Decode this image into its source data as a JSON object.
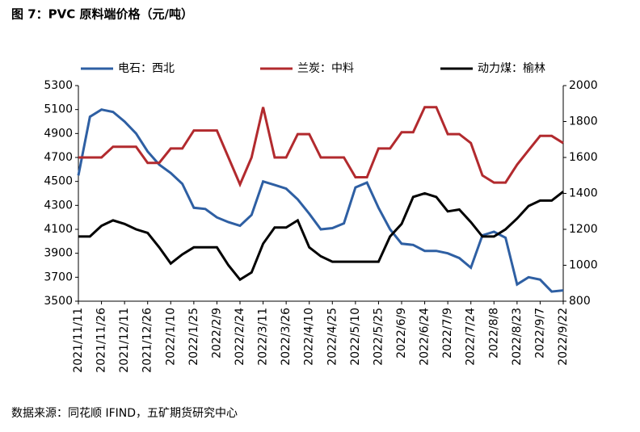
{
  "chart_data": {
    "type": "line",
    "title": "图 7：PVC 原料端价格（元/吨）",
    "source": "数据来源：同花顺 IFIND，五矿期货研究中心",
    "categories": [
      "2021/11/11",
      null,
      "2021/11/26",
      null,
      "2021/12/11",
      null,
      "2021/12/26",
      null,
      "2022/1/10",
      null,
      "2022/1/25",
      null,
      "2022/2/9",
      null,
      "2022/2/24",
      null,
      "2022/3/11",
      null,
      "2022/3/26",
      null,
      "2022/4/10",
      null,
      "2022/4/25",
      null,
      "2022/5/10",
      null,
      "2022/5/25",
      null,
      "2022/6/9",
      null,
      "2022/6/24",
      null,
      "2022/7/9",
      null,
      "2022/7/24",
      null,
      "2022/8/8",
      null,
      "2022/8/23",
      null,
      "2022/9/7",
      null,
      "2022/9/22"
    ],
    "series": [
      {
        "name": "电石：西北",
        "color": "#2e5fa3",
        "values": [
          4550,
          5040,
          5100,
          5080,
          5000,
          4900,
          4750,
          4640,
          4570,
          4480,
          4280,
          4270,
          4200,
          4160,
          4130,
          4220,
          4500,
          4470,
          4440,
          4350,
          4230,
          4100,
          4110,
          4150,
          4450,
          4490,
          4280,
          4100,
          3980,
          3970,
          3920,
          3920,
          3900,
          3860,
          3780,
          4050,
          4080,
          4030,
          3640,
          3700,
          3680,
          3580,
          3590
        ]
      },
      {
        "name": "兰炭：中料",
        "color": "#b22a2e",
        "axis": "y2",
        "values": [
          1600,
          1600,
          1600,
          1660,
          1660,
          1660,
          1570,
          1570,
          1650,
          1650,
          1750,
          1750,
          1750,
          1600,
          1450,
          1600,
          1880,
          1600,
          1600,
          1730,
          1730,
          1600,
          1600,
          1600,
          1490,
          1490,
          1650,
          1650,
          1740,
          1740,
          1880,
          1880,
          1730,
          1730,
          1680,
          1500,
          1460,
          1460,
          1560,
          1640,
          1720,
          1720,
          1680
        ]
      },
      {
        "name": "动力煤：榆林",
        "color": "#000000",
        "axis": "y2",
        "values": [
          1160,
          1160,
          1220,
          1250,
          1230,
          1200,
          1180,
          1100,
          1010,
          1060,
          1100,
          1100,
          1100,
          1000,
          920,
          960,
          1120,
          1210,
          1210,
          1250,
          1100,
          1050,
          1020,
          1020,
          1020,
          1020,
          1020,
          1160,
          1230,
          1380,
          1400,
          1380,
          1300,
          1310,
          1240,
          1160,
          1160,
          1200,
          1260,
          1330,
          1360,
          1360,
          1410
        ]
      }
    ],
    "ylim": [
      3500,
      5300
    ],
    "yticks": [
      3500,
      3700,
      3900,
      4100,
      4300,
      4500,
      4700,
      4900,
      5100,
      5300
    ],
    "y2lim": [
      800,
      2000
    ],
    "y2ticks": [
      800,
      1000,
      1200,
      1400,
      1600,
      1800,
      2000
    ]
  }
}
